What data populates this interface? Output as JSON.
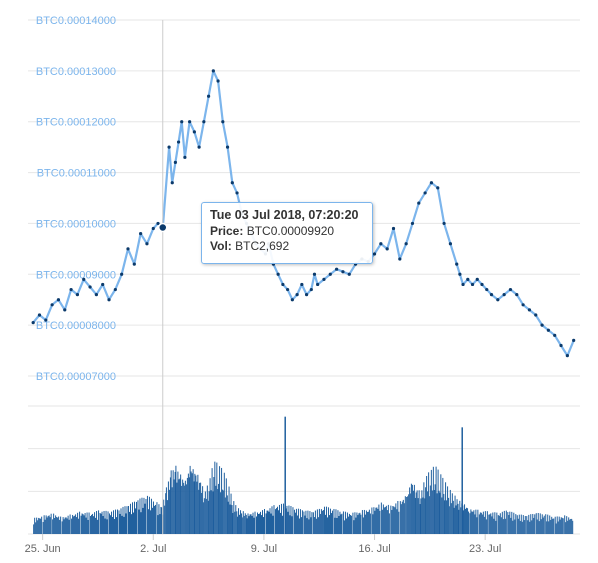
{
  "colors": {
    "price_line": "#7cb5ec",
    "volume_bar": "#1f5f9e",
    "marker": "#0b3a6b",
    "grid": "#e6e6e6",
    "crosshair": "#cccccc"
  },
  "chart_data": [
    {
      "type": "line",
      "ylim": [
        7e-05,
        0.00014
      ],
      "yticks": [
        "BTC0.00014000",
        "BTC0.00013000",
        "BTC0.00012000",
        "BTC0.00011000",
        "BTC0.00010000",
        "BTC0.00009000",
        "BTC0.00008000",
        "BTC0.00007000"
      ],
      "ytick_values": [
        0.00014,
        0.00013,
        0.00012,
        0.00011,
        0.0001,
        9e-05,
        8e-05,
        7e-05
      ],
      "grid": true,
      "series": [
        {
          "x": [
            24.4,
            24.8,
            25.2,
            25.6,
            26.0,
            26.4,
            26.8,
            27.2,
            27.6,
            28.0,
            28.4,
            28.8,
            29.2,
            29.6,
            30.0,
            30.4,
            30.8,
            31.2,
            31.6,
            32.0,
            32.3,
            32.6,
            33.0,
            33.2,
            33.4,
            33.6,
            33.8,
            34.0,
            34.3,
            34.6,
            34.9,
            35.2,
            35.5,
            35.8,
            36.1,
            36.4,
            36.7,
            37.0,
            37.3,
            37.6,
            37.9,
            38.2,
            38.5,
            38.8,
            39.1,
            39.3,
            39.6,
            39.9,
            40.2,
            40.5,
            40.8,
            41.1,
            41.4,
            41.7,
            42.0,
            42.2,
            42.4,
            42.8,
            43.2,
            43.6,
            44.0,
            44.4,
            44.8,
            45.2,
            45.6,
            46.0,
            46.4,
            46.8,
            47.2,
            47.6,
            48.0,
            48.4,
            48.8,
            49.2,
            49.6,
            50.0,
            50.4,
            50.8,
            51.2,
            51.4,
            51.6,
            51.9,
            52.2,
            52.5,
            52.8,
            53.1,
            53.4,
            53.8,
            54.2,
            54.6,
            55.0,
            55.4,
            55.8,
            56.2,
            56.6,
            57.0,
            57.4,
            57.8,
            58.2,
            58.6
          ],
          "values": [
            8.05e-05,
            8.2e-05,
            8.1e-05,
            8.4e-05,
            8.5e-05,
            8.3e-05,
            8.7e-05,
            8.6e-05,
            8.9e-05,
            8.75e-05,
            8.6e-05,
            8.8e-05,
            8.5e-05,
            8.7e-05,
            9e-05,
            9.5e-05,
            9.2e-05,
            9.8e-05,
            9.6e-05,
            9.9e-05,
            0.0001,
            9.92e-05,
            0.000115,
            0.000108,
            0.000112,
            0.000116,
            0.00012,
            0.000113,
            0.00012,
            0.000118,
            0.000115,
            0.00012,
            0.000125,
            0.00013,
            0.000128,
            0.00012,
            0.000115,
            0.000108,
            0.000106,
            0.000102,
            0.0001,
            9.8e-05,
            9.6e-05,
            9.5e-05,
            9.4e-05,
            9.6e-05,
            9.2e-05,
            9e-05,
            8.8e-05,
            8.7e-05,
            8.5e-05,
            8.6e-05,
            8.8e-05,
            8.6e-05,
            8.7e-05,
            9e-05,
            8.8e-05,
            8.9e-05,
            9e-05,
            9.1e-05,
            9.05e-05,
            9e-05,
            9.2e-05,
            9.3e-05,
            9.25e-05,
            9.4e-05,
            9.6e-05,
            9.5e-05,
            9.9e-05,
            9.3e-05,
            9.6e-05,
            0.0001,
            0.000104,
            0.000106,
            0.000108,
            0.000107,
            0.0001,
            9.6e-05,
            9.2e-05,
            9e-05,
            8.8e-05,
            8.9e-05,
            8.8e-05,
            8.9e-05,
            8.8e-05,
            8.7e-05,
            8.6e-05,
            8.5e-05,
            8.6e-05,
            8.7e-05,
            8.6e-05,
            8.4e-05,
            8.3e-05,
            8.2e-05,
            8e-05,
            7.9e-05,
            7.8e-05,
            7.6e-05,
            7.4e-05,
            7.7e-05
          ]
        }
      ]
    },
    {
      "type": "bar",
      "grid": true,
      "xticks": [
        "25. Jun",
        "2. Jul",
        "9. Jul",
        "16. Jul",
        "23. Jul"
      ],
      "xtick_values": [
        25,
        32,
        39,
        46,
        53
      ],
      "series": [
        {
          "x": [
            24.4,
            25.0,
            25.6,
            26.2,
            26.8,
            27.4,
            28.0,
            28.6,
            29.2,
            29.8,
            30.4,
            31.0,
            31.6,
            32.2,
            32.5,
            32.8,
            33.1,
            33.4,
            33.7,
            34.0,
            34.3,
            34.6,
            34.9,
            35.2,
            35.5,
            35.8,
            36.1,
            36.4,
            36.7,
            37.0,
            37.3,
            37.6,
            37.9,
            38.5,
            39.1,
            39.7,
            40.3,
            40.9,
            41.5,
            42.1,
            42.8,
            43.4,
            44.0,
            44.6,
            45.2,
            45.8,
            46.4,
            47.0,
            47.6,
            48.0,
            48.3,
            48.6,
            48.9,
            49.2,
            49.5,
            49.8,
            50.1,
            50.4,
            50.7,
            51.0,
            51.3,
            51.6,
            52.0,
            52.6,
            53.2,
            53.8,
            54.4,
            55.0,
            55.6,
            56.2,
            56.8,
            57.4,
            58.0,
            58.6
          ],
          "volume": [
            1.2,
            1.4,
            1.6,
            1.3,
            1.5,
            1.7,
            1.6,
            1.8,
            1.7,
            1.9,
            2.2,
            2.6,
            2.9,
            2.4,
            2.0,
            3.5,
            4.8,
            5.2,
            4.6,
            4.2,
            5.5,
            5.0,
            4.4,
            3.2,
            4.0,
            5.6,
            5.2,
            4.8,
            3.8,
            2.6,
            2.0,
            1.8,
            1.6,
            1.7,
            1.9,
            2.2,
            2.3,
            2.0,
            1.8,
            1.7,
            2.1,
            1.9,
            1.7,
            1.6,
            1.8,
            2.0,
            2.4,
            2.2,
            2.6,
            3.0,
            4.2,
            3.6,
            3.2,
            4.4,
            4.8,
            5.2,
            4.6,
            4.0,
            3.4,
            3.0,
            2.6,
            2.4,
            2.0,
            1.8,
            1.7,
            1.6,
            1.8,
            1.5,
            1.4,
            1.6,
            1.5,
            1.3,
            1.4,
            1.2
          ],
          "spikes": [
            {
              "x": 40.3,
              "volume": 11.0
            },
            {
              "x": 51.5,
              "volume": 10.0
            }
          ]
        }
      ]
    }
  ],
  "tooltip": {
    "title": "Tue 03 Jul 2018, 07:20:20",
    "price_label": "Price:",
    "price_value": "BTC0.00009920",
    "vol_label": "Vol:",
    "vol_value": "BTC2,692"
  }
}
